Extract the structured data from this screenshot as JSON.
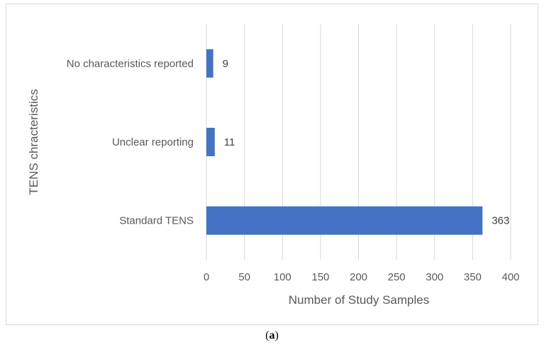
{
  "chart_data": {
    "type": "bar",
    "orientation": "horizontal",
    "categories": [
      "No characteristics reported",
      "Unclear reporting",
      "Standard TENS"
    ],
    "values": [
      9,
      11,
      363
    ],
    "data_labels": [
      "9",
      "11",
      "363"
    ],
    "xlabel": "Number of Study Samples",
    "ylabel": "TENS chracteristics",
    "xlim": [
      0,
      400
    ],
    "x_ticks": [
      0,
      50,
      100,
      150,
      200,
      250,
      300,
      350,
      400
    ],
    "grid": true,
    "bar_color": "#4472C4",
    "gridline_color": "#d9d9d9"
  },
  "caption": {
    "open": "(",
    "letter": "a",
    "close": ")"
  }
}
